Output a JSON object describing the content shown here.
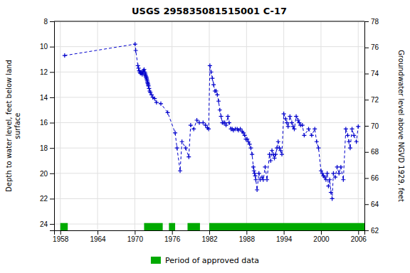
{
  "chart_data": {
    "type": "line",
    "title": "USGS 295835081515001 C-17",
    "ylabel": "Depth to water level, feet below land\nsurface",
    "y2label": "Groundwater level above NGVD 1929, feet",
    "xlim": [
      1957,
      2007
    ],
    "xticks": [
      1958,
      1964,
      1970,
      1976,
      1982,
      1988,
      1994,
      2000,
      2006
    ],
    "ylim": [
      24.5,
      8
    ],
    "yticks": [
      8,
      10,
      12,
      14,
      16,
      18,
      20,
      22,
      24
    ],
    "y2lim": [
      62,
      78
    ],
    "y2ticks": [
      78,
      76,
      74,
      72,
      70,
      68,
      66,
      64,
      62
    ],
    "grid": true,
    "legend": "bottom",
    "x": [
      1958.7,
      1970.05,
      1970.15,
      1970.5,
      1970.6,
      1970.7,
      1970.8,
      1970.9,
      1971.0,
      1971.1,
      1971.2,
      1971.3,
      1971.4,
      1971.5,
      1971.6,
      1971.65,
      1971.7,
      1971.75,
      1971.8,
      1971.85,
      1971.9,
      1971.95,
      1972.0,
      1972.05,
      1972.1,
      1972.15,
      1972.2,
      1972.3,
      1972.4,
      1972.5,
      1972.7,
      1972.9,
      1973.2,
      1973.5,
      1974.2,
      1975.3,
      1976.5,
      1976.8,
      1977.3,
      1977.6,
      1978.2,
      1978.7,
      1979.0,
      1979.5,
      1980.0,
      1980.4,
      1981.0,
      1981.4,
      1981.7,
      1981.9,
      1982.1,
      1982.3,
      1982.5,
      1982.7,
      1982.9,
      1983.1,
      1983.3,
      1983.5,
      1983.7,
      1983.9,
      1984.1,
      1984.3,
      1984.5,
      1984.7,
      1985.0,
      1985.2,
      1985.5,
      1985.7,
      1985.9,
      1986.2,
      1986.5,
      1986.7,
      1987.0,
      1987.3,
      1987.5,
      1987.7,
      1987.9,
      1988.1,
      1988.3,
      1988.5,
      1988.7,
      1988.9,
      1989.1,
      1989.2,
      1989.3,
      1989.4,
      1989.5,
      1989.7,
      1990.0,
      1990.2,
      1990.5,
      1990.7,
      1991.0,
      1991.3,
      1991.7,
      1991.9,
      1992.1,
      1992.3,
      1992.5,
      1992.7,
      1992.9,
      1993.1,
      1993.3,
      1993.5,
      1993.7,
      1994.0,
      1994.3,
      1994.5,
      1994.7,
      1995.0,
      1995.3,
      1995.5,
      1995.7,
      1996.0,
      1996.3,
      1996.5,
      1996.7,
      1997.0,
      1997.3,
      1998.0,
      1998.5,
      1999.0,
      1999.3,
      1999.6,
      2000.0,
      2000.2,
      2000.4,
      2000.6,
      2000.8,
      2001.0,
      2001.2,
      2001.4,
      2001.6,
      2001.8,
      2002.0,
      2002.3,
      2002.6,
      2002.9,
      2003.2,
      2003.6,
      2004.0,
      2004.3,
      2004.5,
      2004.7,
      2005.0,
      2005.3,
      2005.7,
      2006.0
    ],
    "series": [
      {
        "color": "#0000CC",
        "marker": "plus",
        "line_style": "dashed",
        "values": [
          10.7,
          9.8,
          10.3,
          11.5,
          11.7,
          11.9,
          12.0,
          12.1,
          12.0,
          12.1,
          12.2,
          12.0,
          11.9,
          11.8,
          12.0,
          12.1,
          12.2,
          12.3,
          12.4,
          12.4,
          12.5,
          12.6,
          12.7,
          12.8,
          12.9,
          13.0,
          13.1,
          13.3,
          13.5,
          13.6,
          13.8,
          14.0,
          14.1,
          14.4,
          14.5,
          15.2,
          16.8,
          18.0,
          19.8,
          17.5,
          18.0,
          18.7,
          16.2,
          16.5,
          15.8,
          16.0,
          16.0,
          16.2,
          16.4,
          16.5,
          11.5,
          12.0,
          12.5,
          13.0,
          13.5,
          13.5,
          13.8,
          14.3,
          15.0,
          15.5,
          16.0,
          16.0,
          16.0,
          16.2,
          15.5,
          16.0,
          16.5,
          16.5,
          16.6,
          16.5,
          16.5,
          16.6,
          16.5,
          16.7,
          16.8,
          17.0,
          17.3,
          17.3,
          17.5,
          17.7,
          18.0,
          18.5,
          19.5,
          19.8,
          20.0,
          20.2,
          20.5,
          21.3,
          20.0,
          20.5,
          20.3,
          20.5,
          19.5,
          20.5,
          18.5,
          19.0,
          18.2,
          18.5,
          18.8,
          18.5,
          18.0,
          17.5,
          18.0,
          18.2,
          18.5,
          15.3,
          15.7,
          16.0,
          16.3,
          15.5,
          16.0,
          16.3,
          16.5,
          15.5,
          15.8,
          16.0,
          16.2,
          16.2,
          17.0,
          16.5,
          17.0,
          16.5,
          17.5,
          18.0,
          19.8,
          20.0,
          20.2,
          20.3,
          20.5,
          20.0,
          21.0,
          20.5,
          21.5,
          22.0,
          20.0,
          20.3,
          19.5,
          20.0,
          19.5,
          20.5,
          16.5,
          17.0,
          17.5,
          18.0,
          16.5,
          17.0,
          17.5,
          16.3
        ]
      }
    ],
    "spans": [
      {
        "name": "Period of approved data",
        "color": "#00AA00",
        "ranges": [
          [
            1958.0,
            1959.2
          ],
          [
            1971.5,
            1974.5
          ],
          [
            1975.5,
            1976.5
          ],
          [
            1978.5,
            1980.5
          ],
          [
            1982.0,
            2007.0
          ]
        ]
      }
    ]
  }
}
